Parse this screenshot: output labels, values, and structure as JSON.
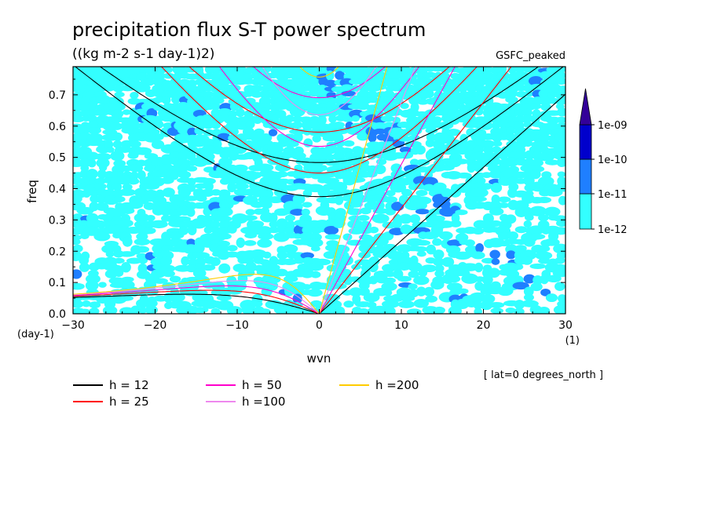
{
  "chart_data": {
    "type": "heatmap",
    "title": "precipitation flux S-T power spectrum",
    "subtitle": "((kg m-2 s-1 day-1)2)",
    "dataset_label": "GSFC_peaked",
    "xlabel": "wvn",
    "ylabel": "freq",
    "x_unit": "(1)",
    "y_unit": "(day-1)",
    "xlim": [
      -30,
      30
    ],
    "ylim": [
      0,
      0.79
    ],
    "x_ticks": [
      -30,
      -20,
      -10,
      0,
      10,
      20,
      30
    ],
    "y_ticks": [
      0.0,
      0.1,
      0.2,
      0.3,
      0.4,
      0.5,
      0.6,
      0.7
    ],
    "colorbar": {
      "levels": [
        "1e-12",
        "1e-11",
        "1e-10",
        "1e-09"
      ],
      "colors": [
        "#33ffff",
        "#1f7fff",
        "#0000cc",
        "#330099"
      ]
    },
    "annotation": "[ lat=0 degrees_north ]",
    "dispersion_curves": [
      {
        "name": "h = 12",
        "h": 12,
        "color": "#000000"
      },
      {
        "name": "h = 25",
        "h": 25,
        "color": "#ff0000"
      },
      {
        "name": "h = 50",
        "h": 50,
        "color": "#ff00cc"
      },
      {
        "name": "h =100",
        "h": 100,
        "color": "#ee88ee"
      },
      {
        "name": "h =200",
        "h": 200,
        "color": "#ffcc00"
      }
    ]
  }
}
